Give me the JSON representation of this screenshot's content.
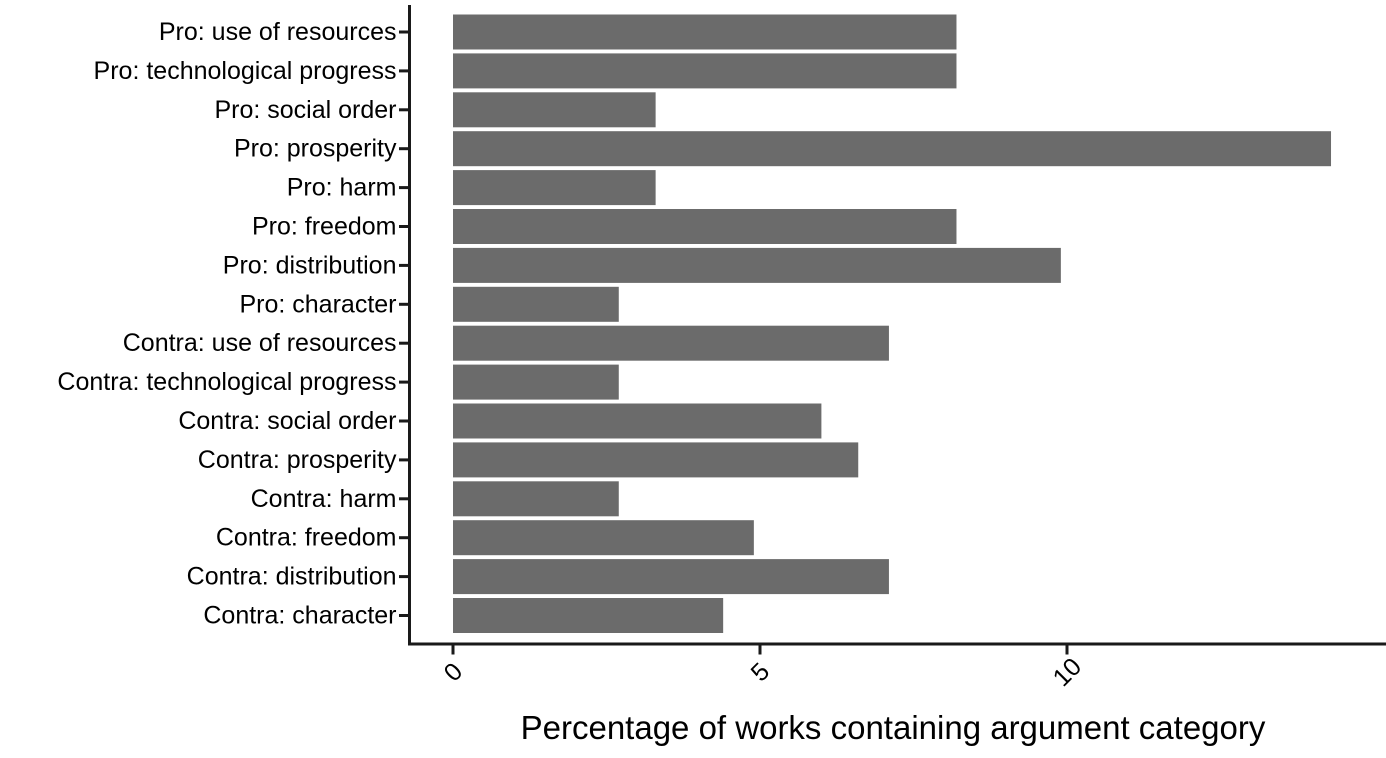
{
  "chart_data": {
    "type": "bar",
    "orientation": "horizontal",
    "title": "",
    "xlabel": "Percentage of works containing argument category",
    "ylabel": "",
    "categories": [
      "Pro: use of resources",
      "Pro: technological progress",
      "Pro: social order",
      "Pro: prosperity",
      "Pro: harm",
      "Pro: freedom",
      "Pro: distribution",
      "Pro: character",
      "Contra: use of resources",
      "Contra: technological progress",
      "Contra: social order",
      "Contra: prosperity",
      "Contra: harm",
      "Contra: freedom",
      "Contra: distribution",
      "Contra: character"
    ],
    "values": [
      8.2,
      8.2,
      3.3,
      14.3,
      3.3,
      8.2,
      9.9,
      2.7,
      7.1,
      2.7,
      6.0,
      6.6,
      2.7,
      4.9,
      7.1,
      4.4
    ],
    "xticks": [
      0,
      5,
      10
    ],
    "xlim": [
      0,
      15.2
    ],
    "grid": false,
    "legend": null,
    "x_tick_label_rotation_deg": 45,
    "colors": {
      "bar_fill": "#6b6b6b",
      "axis": "#1a1a1a",
      "text": "#000000",
      "background": "#ffffff"
    }
  }
}
